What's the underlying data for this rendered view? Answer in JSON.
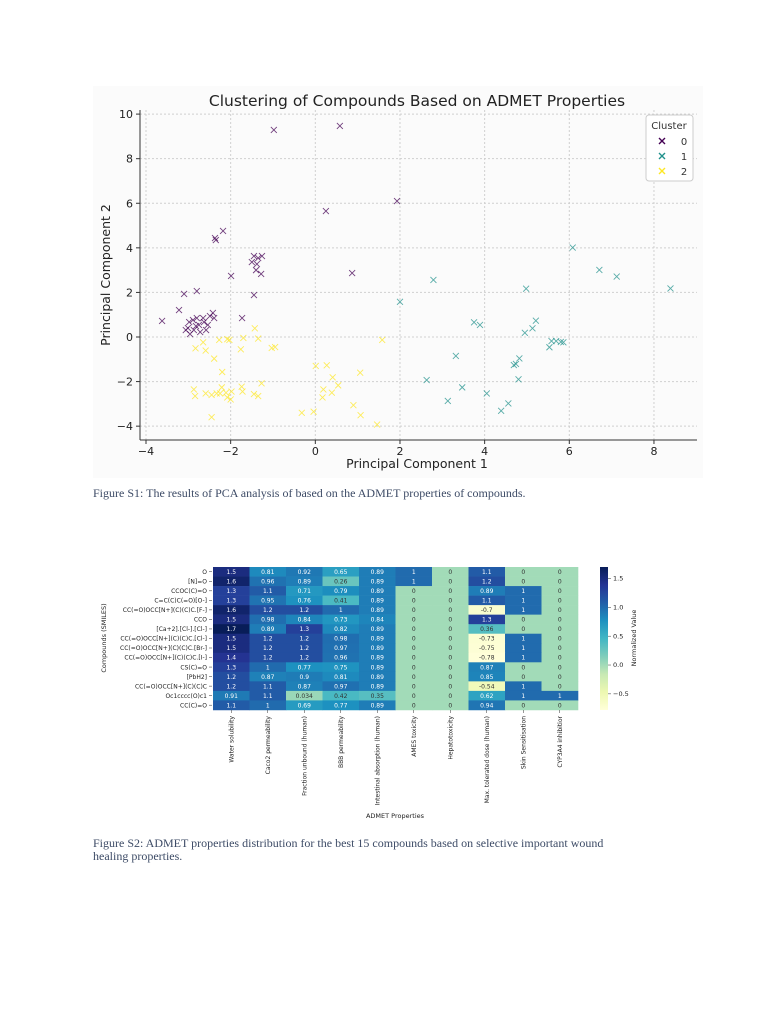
{
  "figure1": {
    "caption": "Figure S1: The results of PCA analysis of based on the ADMET properties of compounds."
  },
  "figure2": {
    "caption": "Figure S2: ADMET properties distribution for the best 15 compounds based on selective important wound healing properties."
  },
  "chart_data": [
    {
      "type": "scatter",
      "title": "Clustering of Compounds Based on ADMET Properties",
      "xlabel": "Principal Component 1",
      "ylabel": "Principal Component 2",
      "xlim": [
        -4.2,
        8.9
      ],
      "ylim": [
        -4.5,
        10.2
      ],
      "xticks": [
        "−4",
        "−2",
        "0",
        "2",
        "4",
        "6",
        "8"
      ],
      "xtick_values": [
        -4,
        -2,
        0,
        2,
        4,
        6,
        8
      ],
      "yticks": [
        "−4",
        "−2",
        "0",
        "2",
        "4",
        "6",
        "8",
        "10"
      ],
      "ytick_values": [
        -4,
        -2,
        0,
        2,
        4,
        6,
        8,
        10
      ],
      "grid": true,
      "marker": "x",
      "legend": {
        "title": "Cluster",
        "placement": "top-right"
      },
      "series": [
        {
          "name": "0",
          "color": "#440154",
          "points": [
            [
              -0.98,
              9.29
            ],
            [
              0.58,
              9.47
            ],
            [
              0.25,
              5.65
            ],
            [
              1.93,
              6.1
            ],
            [
              0.87,
              2.87
            ],
            [
              -2.18,
              4.76
            ],
            [
              -2.37,
              4.44
            ],
            [
              -2.35,
              4.35
            ],
            [
              -1.99,
              2.74
            ],
            [
              -1.45,
              1.88
            ],
            [
              -1.45,
              3.63
            ],
            [
              -1.35,
              3.54
            ],
            [
              -1.26,
              3.63
            ],
            [
              -1.5,
              3.36
            ],
            [
              -1.38,
              3.27
            ],
            [
              -1.4,
              3.0
            ],
            [
              -1.28,
              2.83
            ],
            [
              -3.1,
              1.93
            ],
            [
              -2.8,
              2.06
            ],
            [
              -3.22,
              1.21
            ],
            [
              -3.62,
              0.72
            ],
            [
              -1.73,
              0.85
            ],
            [
              -2.89,
              0.76
            ],
            [
              -2.8,
              0.85
            ],
            [
              -2.75,
              0.54
            ],
            [
              -2.63,
              0.67
            ],
            [
              -3.01,
              0.4
            ],
            [
              -2.87,
              0.31
            ],
            [
              -2.72,
              0.22
            ],
            [
              -2.58,
              0.31
            ],
            [
              -2.42,
              1.08
            ],
            [
              -2.49,
              0.94
            ],
            [
              -2.39,
              0.85
            ],
            [
              -2.65,
              0.85
            ],
            [
              -2.96,
              0.13
            ],
            [
              -2.82,
              0.49
            ],
            [
              -2.98,
              0.67
            ],
            [
              -3.06,
              0.31
            ],
            [
              -2.54,
              0.54
            ]
          ]
        },
        {
          "name": "1",
          "color": "#21918c",
          "points": [
            [
              2.0,
              1.58
            ],
            [
              2.79,
              2.56
            ],
            [
              6.08,
              4.01
            ],
            [
              6.71,
              3.01
            ],
            [
              7.12,
              2.71
            ],
            [
              8.39,
              2.18
            ],
            [
              4.98,
              2.17
            ],
            [
              3.75,
              0.66
            ],
            [
              3.89,
              0.54
            ],
            [
              5.21,
              0.73
            ],
            [
              5.13,
              0.39
            ],
            [
              4.95,
              0.19
            ],
            [
              5.58,
              -0.18
            ],
            [
              5.69,
              -0.18
            ],
            [
              5.8,
              -0.22
            ],
            [
              5.86,
              -0.24
            ],
            [
              5.53,
              -0.46
            ],
            [
              4.82,
              -0.96
            ],
            [
              4.74,
              -1.21
            ],
            [
              4.69,
              -1.26
            ],
            [
              3.32,
              -0.85
            ],
            [
              2.63,
              -1.93
            ],
            [
              3.47,
              -2.26
            ],
            [
              3.13,
              -2.87
            ],
            [
              4.05,
              -2.53
            ],
            [
              4.8,
              -1.9
            ],
            [
              4.56,
              -2.98
            ],
            [
              4.39,
              -3.31
            ]
          ]
        },
        {
          "name": "2",
          "color": "#fde725",
          "points": [
            [
              -1.43,
              0.39
            ],
            [
              -2.27,
              -0.13
            ],
            [
              -2.08,
              -0.1
            ],
            [
              -2.03,
              -0.13
            ],
            [
              -1.7,
              -0.04
            ],
            [
              -1.35,
              -0.07
            ],
            [
              -2.83,
              -0.51
            ],
            [
              -2.65,
              -0.24
            ],
            [
              -2.59,
              -0.61
            ],
            [
              -1.76,
              -0.55
            ],
            [
              -1.03,
              -0.49
            ],
            [
              -0.95,
              -0.45
            ],
            [
              -2.39,
              -0.97
            ],
            [
              -2.2,
              -1.57
            ],
            [
              1.58,
              -0.13
            ],
            [
              0.01,
              -1.3
            ],
            [
              0.27,
              -1.27
            ],
            [
              0.41,
              -1.81
            ],
            [
              0.54,
              -2.17
            ],
            [
              1.06,
              -1.6
            ],
            [
              -1.27,
              -2.08
            ],
            [
              -2.87,
              -2.35
            ],
            [
              -2.84,
              -2.65
            ],
            [
              -2.59,
              -2.53
            ],
            [
              -2.45,
              -2.6
            ],
            [
              -2.33,
              -2.53
            ],
            [
              -2.25,
              -2.53
            ],
            [
              -2.21,
              -2.26
            ],
            [
              -2.11,
              -2.5
            ],
            [
              -2.08,
              -2.71
            ],
            [
              -1.98,
              -2.45
            ],
            [
              -2.0,
              -2.8
            ],
            [
              -1.74,
              -2.23
            ],
            [
              -1.72,
              -2.45
            ],
            [
              -1.45,
              -2.56
            ],
            [
              -1.35,
              -2.65
            ],
            [
              0.19,
              -2.35
            ],
            [
              0.17,
              -2.71
            ],
            [
              0.39,
              -2.5
            ],
            [
              0.9,
              -3.06
            ],
            [
              1.07,
              -3.51
            ],
            [
              1.46,
              -3.93
            ],
            [
              -0.32,
              -3.4
            ],
            [
              -0.04,
              -3.35
            ],
            [
              -2.45,
              -3.6
            ]
          ]
        }
      ]
    },
    {
      "type": "heatmap",
      "xlabel": "ADMET Properties",
      "ylabel": "Compounds (SMILES)",
      "colorbar_label": "Normalized Value",
      "colormap": "YlGnBu",
      "colorbar_range": [
        -0.78,
        1.7
      ],
      "colorbar_ticks": [
        "1.5",
        "1.0",
        "0.5",
        "0.0",
        "−0.5"
      ],
      "colorbar_tick_values": [
        1.5,
        1.0,
        0.5,
        0.0,
        -0.5
      ],
      "columns": [
        "Water solubility",
        "Caco2 permeability",
        "Fraction unbound (human)",
        "BBB permeability",
        "Intestinal absorption (human)",
        "AMES toxicity",
        "Hepatotoxicity",
        "Max. tolerated dose (human)",
        "Skin Sensitisation",
        "CYP3A4 inhibitior"
      ],
      "rows": [
        "O",
        "[N]=O",
        "CCOC(C)=O",
        "C=C(C)C(=O)[O-]",
        "CC(=O)OCC[N+](C)(C)C.[F-]",
        "CCO",
        "[Ca+2].[Cl-].[Cl-]",
        "CC(=O)OCC[N+](C)(C)C.[Cl-]",
        "CC(=O)OCC[N+](C)(C)C.[Br-]",
        "CC(=O)OCC[N+](C)(C)C.[I-]",
        "CS(C)=O",
        "[PbH2]",
        "CC(=O)OCC[N+](C)(C)C",
        "Oc1cccc(O)c1",
        "CC(C)=O"
      ],
      "values": [
        [
          "1.5",
          "0.81",
          "0.92",
          "0.65",
          "0.89",
          "1",
          "0",
          "1.1",
          "0",
          "0"
        ],
        [
          "1.6",
          "0.96",
          "0.89",
          "0.26",
          "0.89",
          "1",
          "0",
          "1.2",
          "0",
          "0"
        ],
        [
          "1.3",
          "1.1",
          "0.71",
          "0.79",
          "0.89",
          "0",
          "0",
          "0.89",
          "1",
          "0"
        ],
        [
          "1.3",
          "0.95",
          "0.76",
          "0.41",
          "0.89",
          "0",
          "0",
          "1.1",
          "1",
          "0"
        ],
        [
          "1.6",
          "1.2",
          "1.2",
          "1",
          "0.89",
          "0",
          "0",
          "-0.7",
          "1",
          "0"
        ],
        [
          "1.5",
          "0.98",
          "0.84",
          "0.73",
          "0.84",
          "0",
          "0",
          "1.3",
          "0",
          "0"
        ],
        [
          "1.7",
          "0.89",
          "1.3",
          "0.82",
          "0.89",
          "0",
          "0",
          "0.36",
          "0",
          "0"
        ],
        [
          "1.5",
          "1.2",
          "1.2",
          "0.98",
          "0.89",
          "0",
          "0",
          "-0.73",
          "1",
          "0"
        ],
        [
          "1.5",
          "1.2",
          "1.2",
          "0.97",
          "0.89",
          "0",
          "0",
          "-0.75",
          "1",
          "0"
        ],
        [
          "1.4",
          "1.2",
          "1.2",
          "0.96",
          "0.89",
          "0",
          "0",
          "-0.78",
          "1",
          "0"
        ],
        [
          "1.3",
          "1",
          "0.77",
          "0.75",
          "0.89",
          "0",
          "0",
          "0.87",
          "0",
          "0"
        ],
        [
          "1.2",
          "0.87",
          "0.9",
          "0.81",
          "0.89",
          "0",
          "0",
          "0.85",
          "0",
          "0"
        ],
        [
          "1.2",
          "1.1",
          "0.87",
          "0.97",
          "0.89",
          "0",
          "0",
          "-0.54",
          "1",
          "0"
        ],
        [
          "0.91",
          "1.1",
          "0.034",
          "0.42",
          "0.35",
          "0",
          "0",
          "0.62",
          "1",
          "1"
        ],
        [
          "1.1",
          "1",
          "0.69",
          "0.77",
          "0.89",
          "0",
          "0",
          "0.94",
          "0",
          "0"
        ]
      ]
    }
  ]
}
